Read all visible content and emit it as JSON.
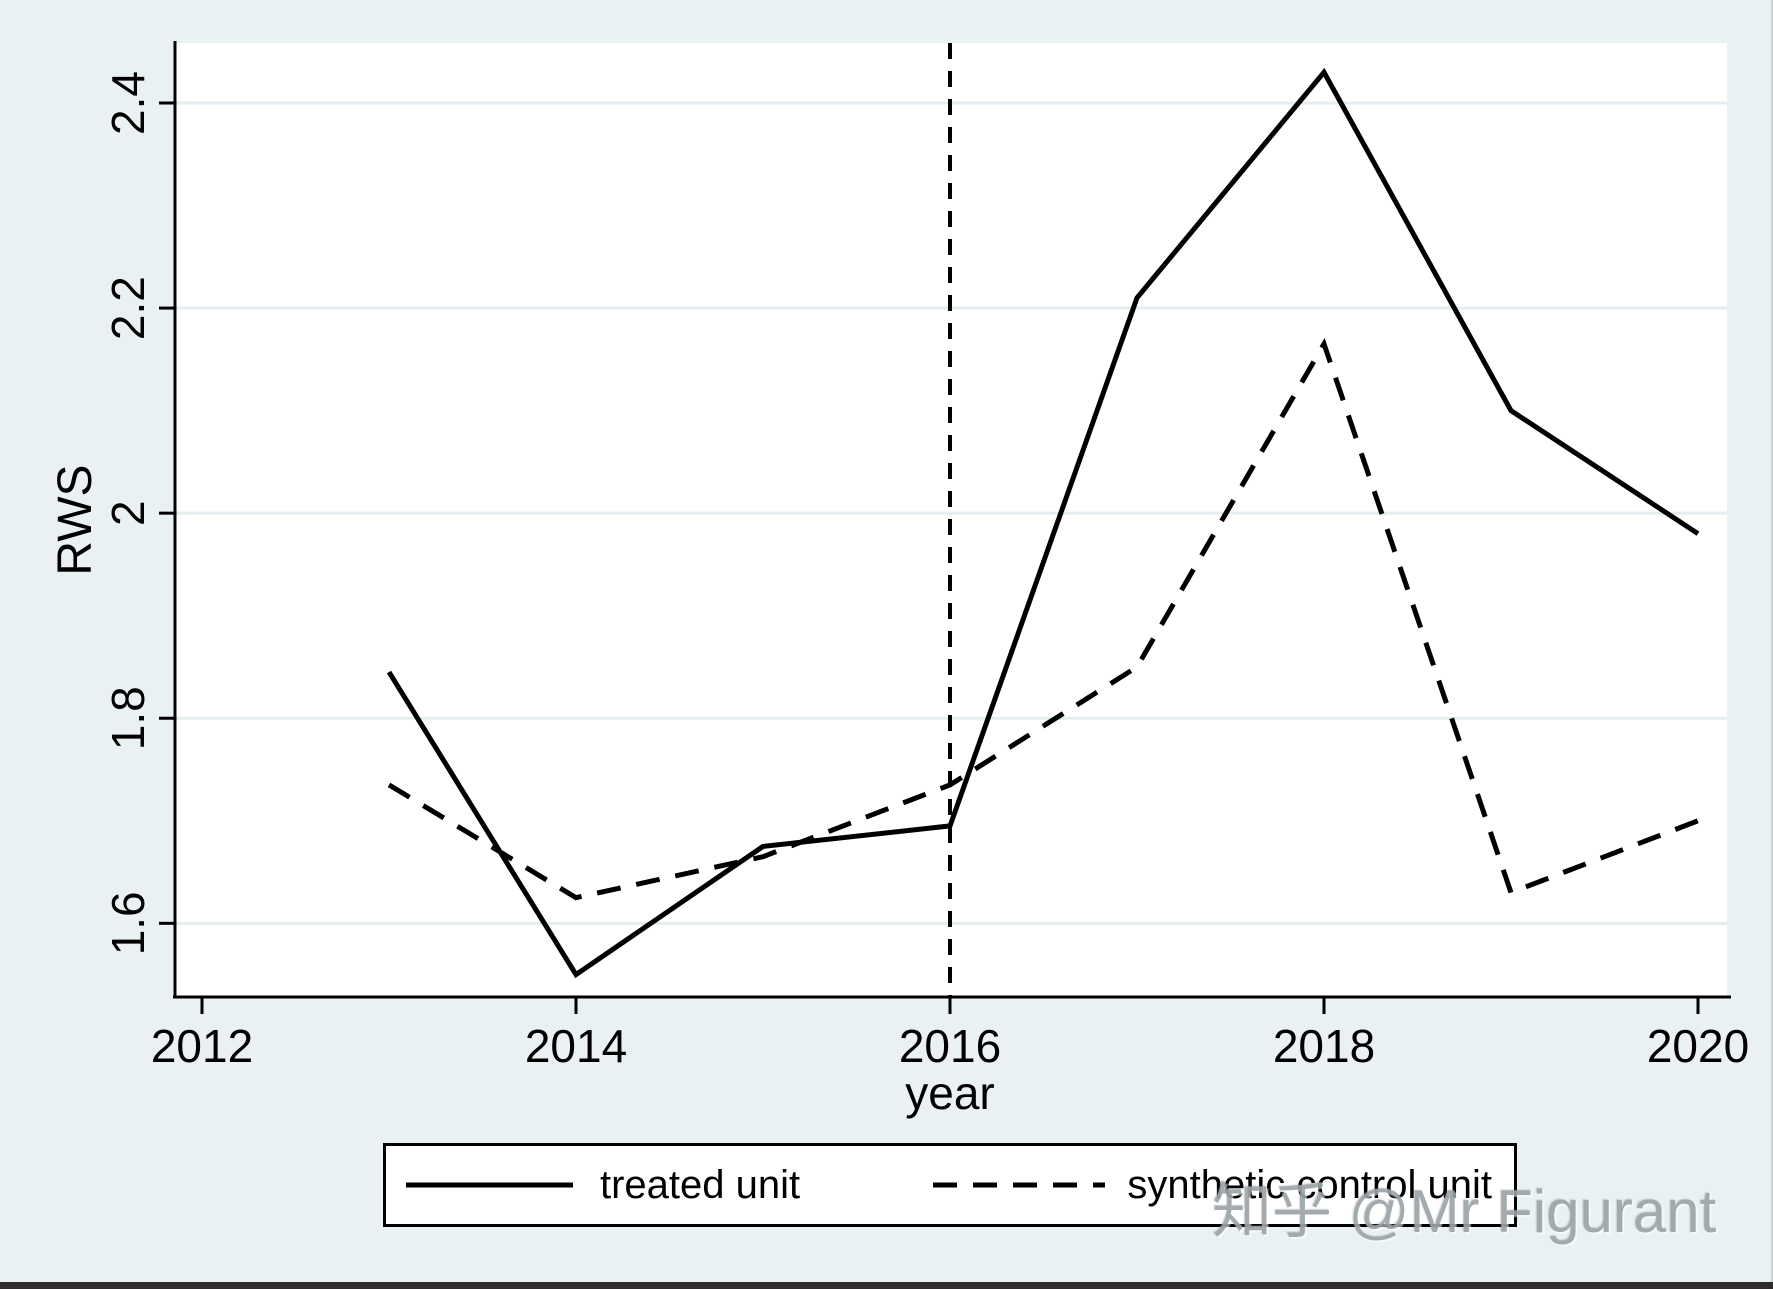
{
  "figure": {
    "background_color": "#eaf1f3",
    "plot_background_color": "#ffffff",
    "gridline_color": "#e4eef0",
    "line_color": "#000000"
  },
  "chart_data": {
    "type": "line",
    "title": "",
    "xlabel": "year",
    "ylabel": "RWS",
    "x": [
      2013,
      2014,
      2015,
      2016,
      2017,
      2018,
      2019,
      2020
    ],
    "series": [
      {
        "name": "treated unit",
        "style": "solid",
        "values": [
          1.845,
          1.55,
          1.675,
          1.695,
          2.21,
          2.43,
          2.1,
          1.98
        ]
      },
      {
        "name": "synthetic control unit",
        "style": "dashed",
        "values": [
          1.735,
          1.625,
          1.665,
          1.735,
          1.85,
          2.165,
          1.63,
          1.7
        ]
      }
    ],
    "x_ticks": [
      2012,
      2014,
      2016,
      2018,
      2020
    ],
    "x_tick_labels": [
      "2012",
      "2014",
      "2016",
      "2018",
      "2020"
    ],
    "y_ticks": [
      1.6,
      1.8,
      2.0,
      2.2,
      2.4
    ],
    "y_tick_labels": [
      "1.6",
      "1.8",
      "2",
      "2.2",
      "2.4"
    ],
    "xlim": [
      2011.86,
      2020.16
    ],
    "ylim": [
      1.53,
      2.46
    ],
    "grid": true,
    "legend_position": "bottom",
    "treatment_line_x": 2016
  },
  "legend": {
    "entries": [
      {
        "label": "treated unit",
        "style": "solid"
      },
      {
        "label": "synthetic control unit",
        "style": "dashed"
      }
    ]
  },
  "watermark": {
    "text": "知乎 @Mr Figurant"
  }
}
